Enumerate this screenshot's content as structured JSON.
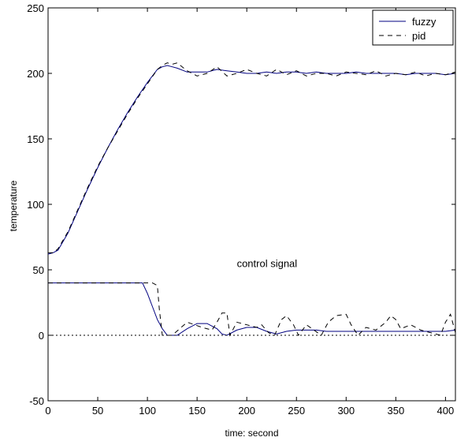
{
  "chart_data": {
    "type": "line",
    "title": "",
    "xlabel": "time: second",
    "ylabel": "temperature",
    "xlim": [
      0,
      410
    ],
    "ylim": [
      -50,
      250
    ],
    "xticks": [
      0,
      50,
      100,
      150,
      200,
      250,
      300,
      350,
      400
    ],
    "yticks": [
      -50,
      0,
      50,
      100,
      150,
      200,
      250
    ],
    "grid": false,
    "legend_position": "top-right",
    "annotations": [
      {
        "text": "control signal",
        "x": 190,
        "y": 52
      }
    ],
    "series": [
      {
        "name": "fuzzy",
        "color": "#000080",
        "style": "solid",
        "x": [
          0,
          5,
          10,
          20,
          30,
          40,
          50,
          60,
          70,
          80,
          90,
          100,
          110,
          115,
          120,
          125,
          130,
          140,
          150,
          160,
          170,
          180,
          190,
          200,
          210,
          220,
          230,
          240,
          250,
          260,
          270,
          280,
          290,
          300,
          310,
          320,
          330,
          340,
          350,
          360,
          370,
          380,
          390,
          400,
          410
        ],
        "values": [
          62,
          63,
          65,
          78,
          95,
          112,
          128,
          143,
          157,
          170,
          182,
          193,
          203,
          205,
          206,
          205,
          204,
          201,
          201,
          201,
          203,
          202,
          201,
          200,
          200,
          201,
          200,
          201,
          201,
          200,
          201,
          200,
          200,
          200,
          201,
          200,
          200,
          200,
          200,
          199,
          200,
          200,
          200,
          199,
          200
        ]
      },
      {
        "name": "pid",
        "color": "#000000",
        "style": "dashed",
        "x": [
          0,
          5,
          10,
          20,
          30,
          40,
          50,
          60,
          70,
          80,
          90,
          100,
          110,
          115,
          120,
          125,
          130,
          140,
          150,
          160,
          170,
          180,
          190,
          200,
          210,
          220,
          230,
          240,
          250,
          260,
          270,
          280,
          290,
          300,
          310,
          320,
          330,
          340,
          350,
          360,
          370,
          380,
          390,
          400,
          410
        ],
        "values": [
          63,
          63,
          66,
          79,
          96,
          113,
          129,
          143,
          156,
          169,
          181,
          192,
          203,
          206,
          208,
          207,
          208,
          202,
          198,
          200,
          205,
          198,
          200,
          203,
          200,
          198,
          203,
          199,
          202,
          198,
          200,
          200,
          198,
          201,
          200,
          199,
          202,
          198,
          200,
          199,
          201,
          198,
          200,
          199,
          201
        ]
      },
      {
        "name": "fuzzy control signal",
        "color": "#000080",
        "style": "solid",
        "x": [
          0,
          95,
          100,
          105,
          110,
          115,
          120,
          130,
          140,
          150,
          160,
          170,
          175,
          180,
          190,
          200,
          210,
          220,
          230,
          240,
          250,
          260,
          270,
          280,
          300,
          330,
          350,
          380,
          400,
          410
        ],
        "values": [
          40,
          40,
          32,
          22,
          12,
          5,
          0,
          0,
          5,
          9,
          9,
          5,
          1,
          0,
          4,
          6,
          6,
          3,
          1,
          3,
          4,
          4,
          4,
          3,
          3,
          3,
          3,
          3,
          3,
          4
        ]
      },
      {
        "name": "pid control signal",
        "color": "#000000",
        "style": "dashed",
        "x": [
          0,
          95,
          100,
          105,
          110,
          112,
          115,
          118,
          125,
          140,
          155,
          165,
          170,
          175,
          180,
          183,
          190,
          200,
          210,
          215,
          222,
          228,
          235,
          240,
          247,
          252,
          260,
          275,
          282,
          290,
          300,
          305,
          312,
          320,
          330,
          340,
          345,
          350,
          355,
          365,
          375,
          385,
          395,
          400,
          405,
          410
        ],
        "values": [
          40,
          40,
          40,
          40,
          38,
          20,
          0,
          0,
          0,
          10,
          6,
          4,
          10,
          17,
          17,
          0,
          10,
          8,
          6,
          8,
          2,
          0,
          12,
          15,
          8,
          0,
          8,
          0,
          10,
          15,
          16,
          8,
          0,
          6,
          4,
          10,
          15,
          12,
          5,
          8,
          4,
          2,
          0,
          10,
          16,
          2
        ]
      },
      {
        "name": "zero line",
        "color": "#000000",
        "style": "dotted",
        "x": [
          0,
          410
        ],
        "values": [
          0,
          0
        ]
      }
    ],
    "legend": [
      {
        "label": "fuzzy",
        "color": "#000080",
        "style": "solid"
      },
      {
        "label": "pid",
        "color": "#000000",
        "style": "dashed"
      }
    ]
  }
}
